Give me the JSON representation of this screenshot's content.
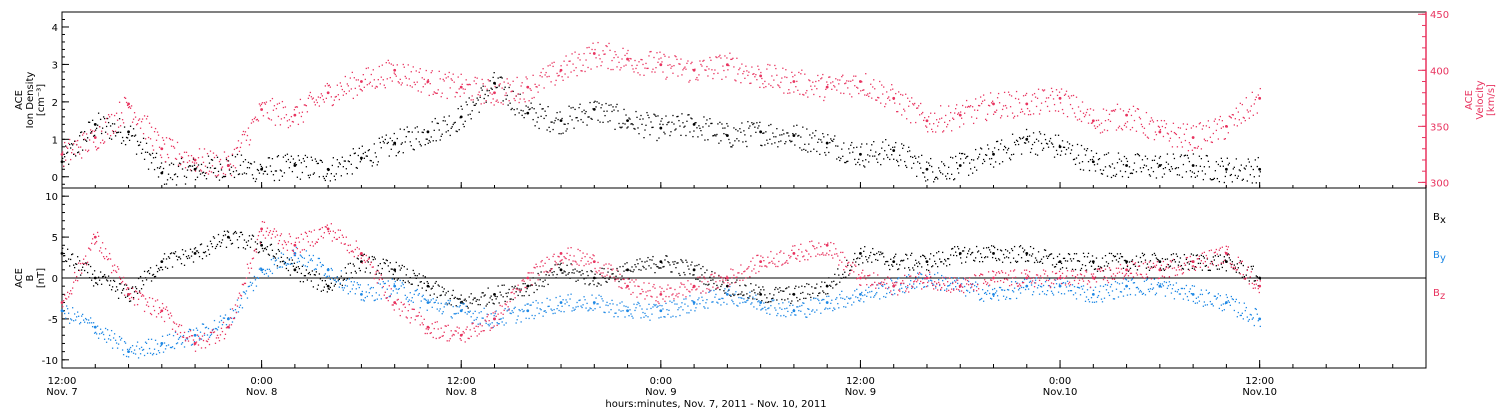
{
  "chart_data": [
    {
      "id": "density_velocity",
      "type": "scatter",
      "left_axis": {
        "label_lines": [
          "ACE",
          "Ion Density",
          "[cm⁻³]"
        ],
        "ylim": [
          -0.3,
          4.4
        ],
        "ticks": [
          "0",
          "1",
          "2",
          "3",
          "4"
        ],
        "color": "#000000"
      },
      "right_axis": {
        "label_lines": [
          "ACE",
          "Velocity",
          "[km/s]"
        ],
        "ylim": [
          295,
          452
        ],
        "ticks": [
          "300",
          "350",
          "400",
          "450"
        ],
        "color": "#e8335f"
      },
      "series": [
        {
          "axis": "left",
          "color": "#000000",
          "x": [
            0,
            2,
            4,
            6,
            8,
            10,
            12,
            14,
            16,
            18,
            20,
            22,
            24,
            26,
            28,
            30,
            32,
            34,
            36,
            38,
            40,
            42,
            44,
            46,
            48,
            50,
            52,
            54,
            56,
            58,
            60,
            62,
            64,
            66,
            68,
            70,
            72
          ],
          "y": [
            0.4,
            1.4,
            1.2,
            0.1,
            0.2,
            0.3,
            0.2,
            0.3,
            0.2,
            0.5,
            0.9,
            1.2,
            1.6,
            2.5,
            1.7,
            1.5,
            1.8,
            1.5,
            1.3,
            1.4,
            1.1,
            1.2,
            1.1,
            0.9,
            0.6,
            0.7,
            0.2,
            0.3,
            0.6,
            1.0,
            0.8,
            0.4,
            0.3,
            0.3,
            0.3,
            0.2,
            0.2
          ]
        },
        {
          "axis": "right",
          "color": "#e8335f",
          "x": [
            0,
            2,
            4,
            6,
            8,
            10,
            12,
            14,
            16,
            18,
            20,
            22,
            24,
            26,
            28,
            30,
            32,
            34,
            36,
            38,
            40,
            42,
            44,
            46,
            48,
            50,
            52,
            54,
            56,
            58,
            60,
            62,
            64,
            66,
            68,
            70,
            72
          ],
          "y": [
            325,
            340,
            370,
            330,
            320,
            315,
            365,
            360,
            380,
            390,
            400,
            390,
            385,
            380,
            385,
            400,
            415,
            410,
            405,
            400,
            405,
            395,
            390,
            385,
            390,
            375,
            355,
            360,
            370,
            370,
            375,
            355,
            360,
            345,
            340,
            350,
            375
          ]
        }
      ]
    },
    {
      "id": "magnetic_field",
      "type": "scatter",
      "left_axis": {
        "label_lines": [
          "ACE",
          "B",
          "[nT]"
        ],
        "ylim": [
          -11,
          11
        ],
        "ticks": [
          "-10",
          "-5",
          "0",
          "5",
          "10"
        ],
        "color": "#000000"
      },
      "zero_line": true,
      "series": [
        {
          "name": "Bx",
          "color": "#000000",
          "x": [
            0,
            2,
            4,
            6,
            8,
            10,
            12,
            14,
            16,
            18,
            20,
            22,
            24,
            26,
            28,
            30,
            32,
            34,
            36,
            38,
            40,
            42,
            44,
            46,
            48,
            50,
            52,
            54,
            56,
            58,
            60,
            62,
            64,
            66,
            68,
            70,
            72
          ],
          "y": [
            3,
            0,
            -2,
            2,
            3,
            5,
            4,
            1,
            -1,
            2,
            1,
            -1,
            -3,
            -2,
            -1,
            1,
            0,
            1,
            2,
            1,
            -1,
            -2,
            -2,
            -1,
            3,
            2,
            2,
            3,
            3,
            3,
            2,
            2,
            2,
            2,
            2,
            2,
            0
          ]
        },
        {
          "name": "By",
          "color": "#1e88e5",
          "x": [
            0,
            2,
            4,
            6,
            8,
            10,
            12,
            14,
            16,
            18,
            20,
            22,
            24,
            26,
            28,
            30,
            32,
            34,
            36,
            38,
            40,
            42,
            44,
            46,
            48,
            50,
            52,
            54,
            56,
            58,
            60,
            62,
            64,
            66,
            68,
            70,
            72
          ],
          "y": [
            -4,
            -6,
            -9,
            -8,
            -7,
            -5,
            1,
            3,
            1,
            -2,
            -1,
            -3,
            -4,
            -5,
            -4,
            -3,
            -3,
            -4,
            -4,
            -3,
            -2,
            -3,
            -4,
            -3,
            -2,
            -1,
            0,
            -1,
            -2,
            -1,
            -1,
            -2,
            -1,
            -1,
            -2,
            -3,
            -5
          ]
        },
        {
          "name": "Bz",
          "color": "#e8335f",
          "x": [
            0,
            2,
            4,
            6,
            8,
            10,
            12,
            14,
            16,
            18,
            20,
            22,
            24,
            26,
            28,
            30,
            32,
            34,
            36,
            38,
            40,
            42,
            44,
            46,
            48,
            50,
            52,
            54,
            56,
            58,
            60,
            62,
            64,
            66,
            68,
            70,
            72
          ],
          "y": [
            -3,
            5,
            -2,
            -4,
            -8,
            -6,
            6,
            4,
            6,
            3,
            -3,
            -6,
            -7,
            -5,
            0,
            3,
            2,
            -1,
            -2,
            -1,
            0,
            2,
            3,
            4,
            0,
            -1,
            0,
            -1,
            0,
            0,
            0,
            0,
            1,
            1,
            2,
            3,
            -1
          ]
        }
      ]
    }
  ],
  "x_axis": {
    "xlim": [
      0,
      82
    ],
    "ticks": [
      {
        "x": 0,
        "time": "12:00",
        "date": "Nov. 7"
      },
      {
        "x": 12,
        "time": "0:00",
        "date": "Nov. 8"
      },
      {
        "x": 24,
        "time": "12:00",
        "date": "Nov. 8"
      },
      {
        "x": 36,
        "time": "0:00",
        "date": "Nov. 9"
      },
      {
        "x": 48,
        "time": "12:00",
        "date": "Nov. 9"
      },
      {
        "x": 60,
        "time": "0:00",
        "date": "Nov.10"
      },
      {
        "x": 72,
        "time": "12:00",
        "date": "Nov.10"
      }
    ],
    "label": "hours:minutes, Nov.  7, 2011 - Nov. 10, 2011"
  },
  "legend": [
    {
      "base": "B",
      "sub": "x",
      "color": "#000000"
    },
    {
      "base": "B",
      "sub": "y",
      "color": "#1e88e5"
    },
    {
      "base": "B",
      "sub": "z",
      "color": "#e8335f"
    }
  ]
}
